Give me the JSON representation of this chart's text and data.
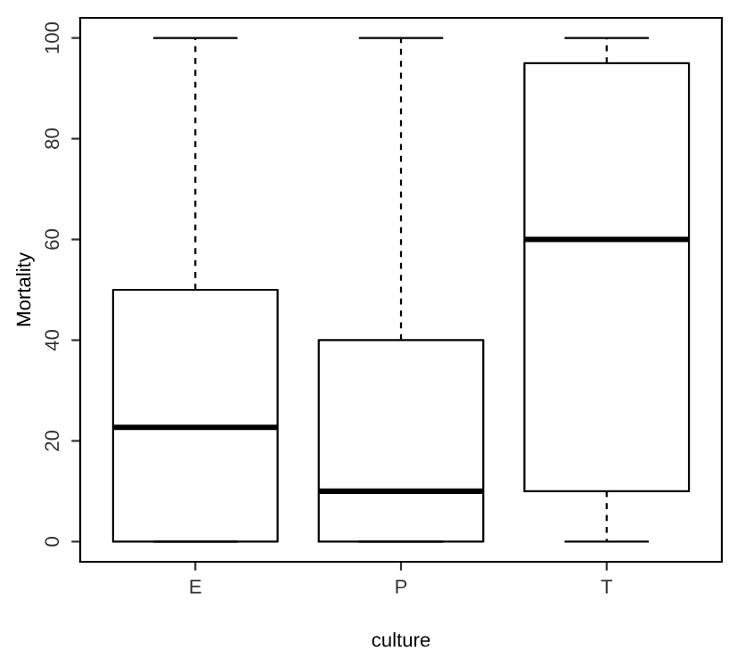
{
  "chart_data": {
    "type": "box",
    "xlabel": "culture",
    "ylabel": "Mortality",
    "categories": [
      "E",
      "P",
      "T"
    ],
    "boxes": [
      {
        "low": 0,
        "q1": 0,
        "median": 22.7,
        "q3": 50,
        "high": 100
      },
      {
        "low": 0,
        "q1": 0,
        "median": 10,
        "q3": 40,
        "high": 100
      },
      {
        "low": 0,
        "q1": 10,
        "median": 60,
        "q3": 95,
        "high": 100
      }
    ],
    "ylim": [
      -4,
      104
    ],
    "yticks": [
      0,
      20,
      40,
      60,
      80,
      100
    ],
    "grid": false,
    "color": "#000000"
  }
}
